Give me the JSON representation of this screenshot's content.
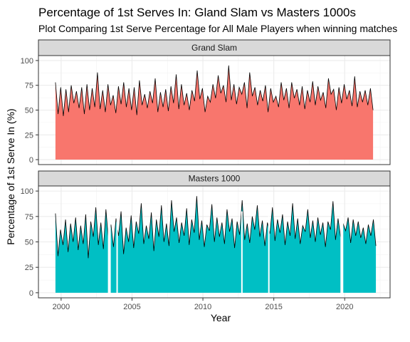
{
  "chart_data": {
    "type": "area",
    "title": "Percentage of 1st Serves In: Gland Slam vs Masters 1000s",
    "subtitle": "Plot Comparing 1st Serve Percentage for All Male Players when winning matches",
    "xlabel": "Year",
    "ylabel": "Percentage of 1st Serve In (%)",
    "xlim": [
      1998.4,
      2023.2
    ],
    "ylim": [
      -5,
      105
    ],
    "x_ticks": [
      2000,
      2005,
      2010,
      2015,
      2020
    ],
    "y_ticks": [
      0,
      25,
      50,
      75,
      100
    ],
    "grid": true,
    "colors": {
      "Grand Slam": "#F8766D",
      "Masters 1000": "#00BFC4",
      "line": "#000000",
      "panel_border": "#333333",
      "grid": "#ebebeb",
      "strip_fill": "#d9d9d9"
    },
    "series": [
      {
        "name": "Grand Slam",
        "x_start": 1999.6,
        "x_end": 2022.0,
        "values": [
          78,
          46,
          73,
          44,
          71,
          48,
          75,
          57,
          69,
          52,
          73,
          46,
          76,
          50,
          72,
          53,
          88,
          51,
          70,
          48,
          76,
          55,
          65,
          47,
          74,
          56,
          78,
          53,
          72,
          50,
          73,
          45,
          80,
          55,
          66,
          52,
          69,
          57,
          82,
          48,
          68,
          53,
          71,
          49,
          74,
          57,
          86,
          51,
          76,
          55,
          67,
          50,
          70,
          59,
          90,
          61,
          72,
          48,
          64,
          58,
          76,
          62,
          85,
          67,
          75,
          58,
          95,
          60,
          76,
          56,
          73,
          66,
          78,
          52,
          88,
          64,
          73,
          55,
          70,
          59,
          75,
          48,
          72,
          58,
          64,
          53,
          78,
          60,
          72,
          52,
          78,
          62,
          71,
          55,
          74,
          51,
          70,
          58,
          79,
          55,
          74,
          60,
          68,
          52,
          82,
          66,
          71,
          50,
          73,
          57,
          76,
          61,
          70,
          54,
          84,
          53,
          69,
          58,
          70,
          55,
          72,
          50
        ],
        "gaps": []
      },
      {
        "name": "Masters 1000",
        "x_start": 1999.6,
        "x_end": 2022.2,
        "values": [
          78,
          36,
          62,
          47,
          72,
          40,
          68,
          50,
          74,
          42,
          66,
          48,
          77,
          34,
          70,
          55,
          84,
          47,
          69,
          43,
          82,
          52,
          67,
          45,
          73,
          56,
          80,
          38,
          64,
          50,
          76,
          44,
          70,
          58,
          88,
          48,
          66,
          53,
          79,
          41,
          72,
          55,
          86,
          50,
          68,
          46,
          91,
          60,
          74,
          49,
          69,
          56,
          83,
          47,
          72,
          59,
          95,
          52,
          71,
          45,
          67,
          61,
          87,
          50,
          74,
          55,
          69,
          48,
          82,
          60,
          73,
          44,
          70,
          57,
          91,
          52,
          68,
          49,
          75,
          62,
          86,
          55,
          71,
          46,
          69,
          58,
          84,
          51,
          72,
          59,
          77,
          47,
          70,
          56,
          88,
          53,
          73,
          48,
          66,
          60,
          82,
          54,
          71,
          50,
          74,
          57,
          69,
          45,
          70,
          62,
          90,
          52,
          73,
          55,
          68,
          61,
          74,
          49,
          72,
          56,
          70,
          54,
          64,
          48,
          67,
          56,
          72,
          46
        ],
        "gaps": [
          [
            2003.3,
            2003.5
          ],
          [
            2003.9,
            2004.0
          ],
          [
            2012.7,
            2012.8
          ],
          [
            2014.6,
            2014.7
          ],
          [
            2019.7,
            2019.9
          ]
        ]
      }
    ]
  }
}
